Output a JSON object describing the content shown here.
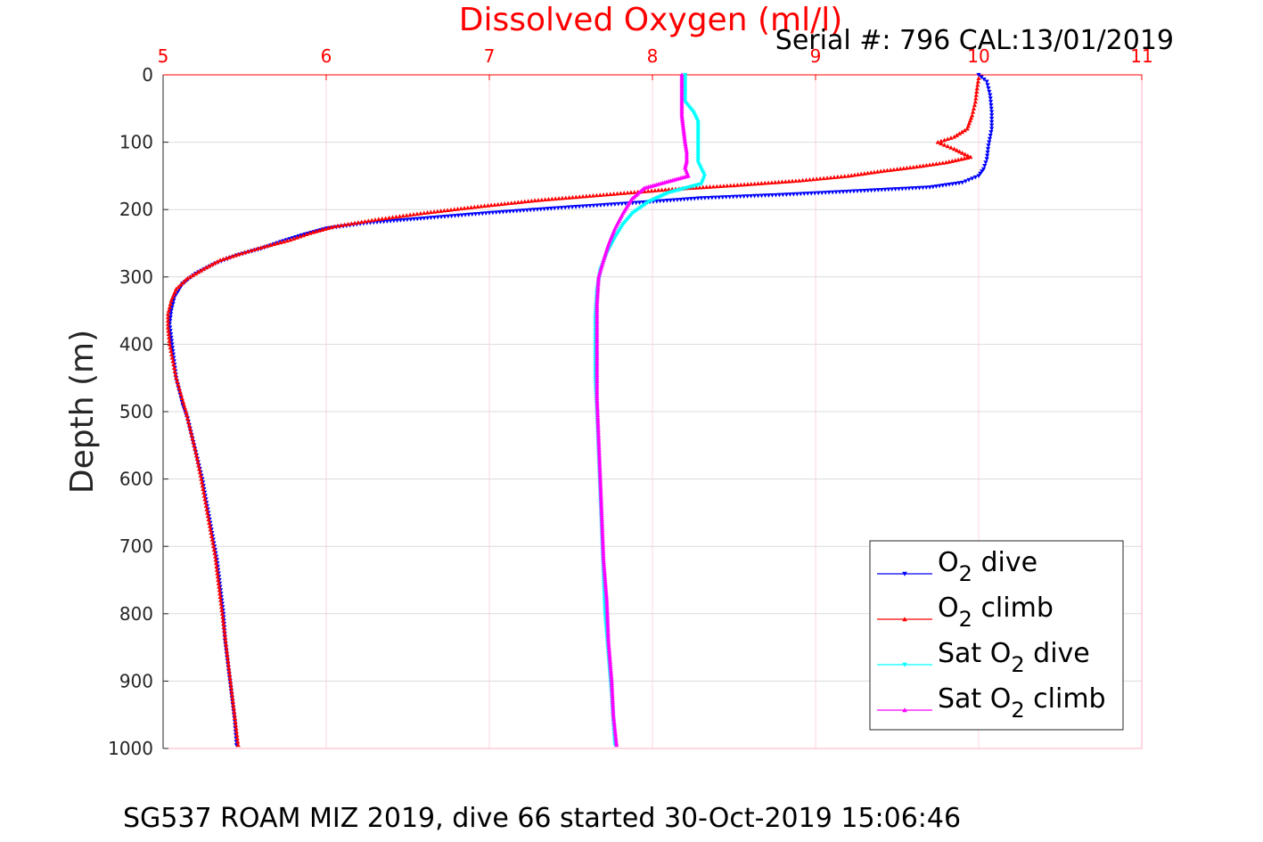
{
  "chart_data": {
    "type": "scatter",
    "title": "Dissolved Oxygen (ml/l)",
    "serial": "Serial #: 796  CAL:13/01/2019",
    "xlabel": "",
    "ylabel": "Depth (m)",
    "footer": "SG537 ROAM MIZ 2019, dive 66 started 30-Oct-2019 15:06:46",
    "xlim": [
      5,
      11
    ],
    "ylim": [
      0,
      1000
    ],
    "y_reversed": true,
    "x_axis_position": "top",
    "grid": true,
    "x_ticks": [
      5,
      6,
      7,
      8,
      9,
      10,
      11
    ],
    "y_ticks": [
      0,
      100,
      200,
      300,
      400,
      500,
      600,
      700,
      800,
      900,
      1000
    ],
    "legend_position": "bottom-right",
    "series": [
      {
        "name": "dive",
        "legend_prefix": "O",
        "legend_sub": "2",
        "legend_suffix": " dive",
        "color": "#0000ff",
        "marker": "triangle-down",
        "points": [
          [
            10.0,
            0
          ],
          [
            10.05,
            10
          ],
          [
            10.07,
            30
          ],
          [
            10.08,
            55
          ],
          [
            10.08,
            80
          ],
          [
            10.06,
            105
          ],
          [
            10.05,
            125
          ],
          [
            10.03,
            140
          ],
          [
            10.0,
            150
          ],
          [
            9.9,
            160
          ],
          [
            9.7,
            167
          ],
          [
            9.3,
            172
          ],
          [
            8.8,
            178
          ],
          [
            8.3,
            183
          ],
          [
            7.9,
            190
          ],
          [
            7.4,
            198
          ],
          [
            7.0,
            205
          ],
          [
            6.6,
            213
          ],
          [
            6.25,
            220
          ],
          [
            6.0,
            228
          ],
          [
            5.85,
            238
          ],
          [
            5.72,
            248
          ],
          [
            5.6,
            258
          ],
          [
            5.45,
            268
          ],
          [
            5.32,
            280
          ],
          [
            5.2,
            295
          ],
          [
            5.12,
            310
          ],
          [
            5.07,
            330
          ],
          [
            5.05,
            350
          ],
          [
            5.04,
            370
          ],
          [
            5.05,
            390
          ],
          [
            5.06,
            410
          ],
          [
            5.07,
            430
          ],
          [
            5.08,
            450
          ],
          [
            5.1,
            470
          ],
          [
            5.12,
            490
          ],
          [
            5.15,
            510
          ],
          [
            5.18,
            540
          ],
          [
            5.21,
            570
          ],
          [
            5.24,
            600
          ],
          [
            5.27,
            640
          ],
          [
            5.3,
            680
          ],
          [
            5.33,
            720
          ],
          [
            5.35,
            760
          ],
          [
            5.37,
            800
          ],
          [
            5.38,
            840
          ],
          [
            5.4,
            880
          ],
          [
            5.42,
            920
          ],
          [
            5.44,
            960
          ],
          [
            5.45,
            995
          ]
        ]
      },
      {
        "name": "climb",
        "legend_prefix": "O",
        "legend_sub": "2",
        "legend_suffix": " climb",
        "color": "#ff0000",
        "marker": "triangle-up",
        "points": [
          [
            10.0,
            5
          ],
          [
            9.99,
            20
          ],
          [
            9.98,
            40
          ],
          [
            9.96,
            60
          ],
          [
            9.93,
            80
          ],
          [
            9.85,
            92
          ],
          [
            9.75,
            100
          ],
          [
            9.85,
            110
          ],
          [
            9.95,
            122
          ],
          [
            9.8,
            130
          ],
          [
            9.6,
            137
          ],
          [
            9.4,
            143
          ],
          [
            9.2,
            150
          ],
          [
            8.9,
            157
          ],
          [
            8.5,
            164
          ],
          [
            8.1,
            170
          ],
          [
            7.7,
            178
          ],
          [
            7.3,
            186
          ],
          [
            6.95,
            195
          ],
          [
            6.6,
            205
          ],
          [
            6.3,
            215
          ],
          [
            6.05,
            225
          ],
          [
            5.9,
            235
          ],
          [
            5.78,
            245
          ],
          [
            5.62,
            255
          ],
          [
            5.48,
            265
          ],
          [
            5.35,
            275
          ],
          [
            5.25,
            288
          ],
          [
            5.15,
            302
          ],
          [
            5.08,
            318
          ],
          [
            5.05,
            335
          ],
          [
            5.03,
            355
          ],
          [
            5.03,
            375
          ],
          [
            5.04,
            400
          ],
          [
            5.06,
            425
          ],
          [
            5.08,
            450
          ],
          [
            5.11,
            475
          ],
          [
            5.14,
            500
          ],
          [
            5.17,
            530
          ],
          [
            5.2,
            560
          ],
          [
            5.23,
            595
          ],
          [
            5.26,
            635
          ],
          [
            5.29,
            675
          ],
          [
            5.32,
            715
          ],
          [
            5.34,
            755
          ],
          [
            5.36,
            795
          ],
          [
            5.38,
            835
          ],
          [
            5.4,
            875
          ],
          [
            5.42,
            915
          ],
          [
            5.44,
            955
          ],
          [
            5.46,
            995
          ]
        ]
      },
      {
        "name": "Sat dive",
        "legend_prefix": "Sat O",
        "legend_sub": "2",
        "legend_suffix": " dive",
        "color": "#00ffff",
        "marker": "triangle-down",
        "points": [
          [
            8.2,
            0
          ],
          [
            8.2,
            20
          ],
          [
            8.2,
            40
          ],
          [
            8.25,
            55
          ],
          [
            8.28,
            70
          ],
          [
            8.28,
            90
          ],
          [
            8.28,
            110
          ],
          [
            8.28,
            130
          ],
          [
            8.32,
            150
          ],
          [
            8.3,
            162
          ],
          [
            8.1,
            175
          ],
          [
            7.98,
            188
          ],
          [
            7.88,
            205
          ],
          [
            7.82,
            222
          ],
          [
            7.77,
            242
          ],
          [
            7.72,
            265
          ],
          [
            7.68,
            290
          ],
          [
            7.66,
            320
          ],
          [
            7.65,
            360
          ],
          [
            7.65,
            400
          ],
          [
            7.65,
            450
          ],
          [
            7.66,
            500
          ],
          [
            7.67,
            560
          ],
          [
            7.68,
            620
          ],
          [
            7.69,
            680
          ],
          [
            7.7,
            740
          ],
          [
            7.71,
            800
          ],
          [
            7.73,
            860
          ],
          [
            7.75,
            920
          ],
          [
            7.77,
            995
          ]
        ]
      },
      {
        "name": "Sat climb",
        "legend_prefix": "Sat O",
        "legend_sub": "2",
        "legend_suffix": " climb",
        "color": "#ff00ff",
        "marker": "triangle-up",
        "points": [
          [
            8.18,
            0
          ],
          [
            8.18,
            20
          ],
          [
            8.18,
            40
          ],
          [
            8.18,
            60
          ],
          [
            8.19,
            80
          ],
          [
            8.2,
            100
          ],
          [
            8.21,
            115
          ],
          [
            8.21,
            128
          ],
          [
            8.2,
            138
          ],
          [
            8.22,
            150
          ],
          [
            8.1,
            158
          ],
          [
            7.95,
            168
          ],
          [
            7.87,
            185
          ],
          [
            7.82,
            205
          ],
          [
            7.77,
            228
          ],
          [
            7.73,
            252
          ],
          [
            7.7,
            275
          ],
          [
            7.67,
            300
          ],
          [
            7.66,
            340
          ],
          [
            7.66,
            380
          ],
          [
            7.66,
            430
          ],
          [
            7.66,
            480
          ],
          [
            7.67,
            540
          ],
          [
            7.68,
            600
          ],
          [
            7.69,
            660
          ],
          [
            7.7,
            720
          ],
          [
            7.72,
            780
          ],
          [
            7.73,
            840
          ],
          [
            7.75,
            900
          ],
          [
            7.76,
            950
          ],
          [
            7.78,
            995
          ]
        ]
      }
    ]
  }
}
